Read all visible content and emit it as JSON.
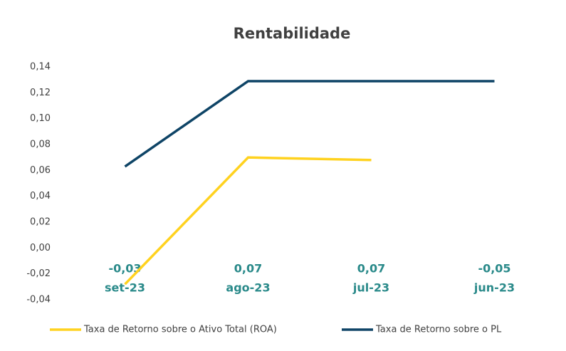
{
  "chart_data": {
    "type": "line",
    "title": "Rentabilidade",
    "categories": [
      "set-23",
      "ago-23",
      "jul-23",
      "jun-23"
    ],
    "annotations": [
      "-0,03",
      "0,07",
      "0,07",
      "-0,05"
    ],
    "series": [
      {
        "name": "Taxa de Retorno sobre o Ativo Total (ROA)",
        "color": "#ffd21f",
        "values": [
          -0.028,
          0.07,
          0.068,
          null
        ]
      },
      {
        "name": "Taxa de Retorno sobre o PL",
        "color": "#0e4466",
        "values": [
          0.063,
          0.129,
          0.129,
          0.129
        ]
      }
    ],
    "ylim": [
      -0.04,
      0.14
    ],
    "yticks": [
      {
        "value": -0.04,
        "label": "-0,04"
      },
      {
        "value": -0.02,
        "label": "-0,02"
      },
      {
        "value": 0,
        "label": "0,00"
      },
      {
        "value": 0.02,
        "label": "0,02"
      },
      {
        "value": 0.04,
        "label": "0,04"
      },
      {
        "value": 0.06,
        "label": "0,06"
      },
      {
        "value": 0.08,
        "label": "0,08"
      },
      {
        "value": 0.1,
        "label": "0,10"
      },
      {
        "value": 0.12,
        "label": "0,12"
      },
      {
        "value": 0.14,
        "label": "0,14"
      }
    ],
    "grid": false,
    "legend": "bottom"
  }
}
